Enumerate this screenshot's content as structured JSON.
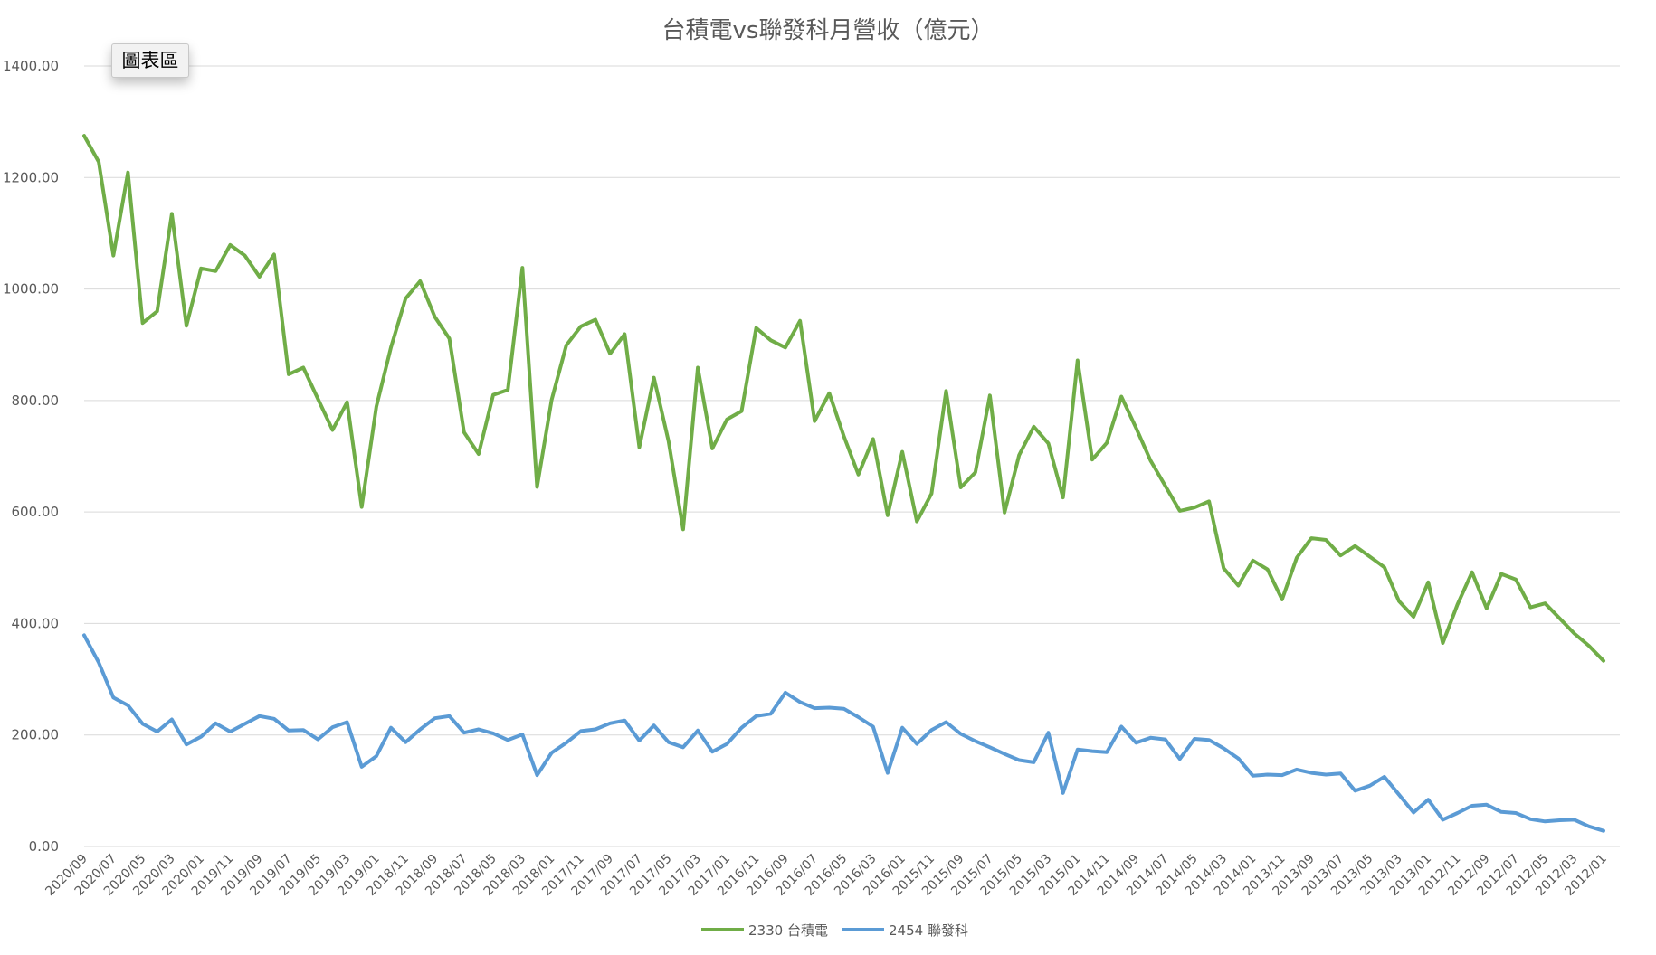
{
  "chart_data": {
    "type": "line",
    "title": "台積電vs聯發科月營收（億元）",
    "chart_area_label": "圖表區",
    "ylim": [
      0,
      1400
    ],
    "yticks": [
      "0.00",
      "200.00",
      "400.00",
      "600.00",
      "800.00",
      "1000.00",
      "1200.00",
      "1400.00"
    ],
    "grid": true,
    "legend_position": "bottom",
    "x": [
      "2020/09",
      "2020/08",
      "2020/07",
      "2020/06",
      "2020/05",
      "2020/04",
      "2020/03",
      "2020/02",
      "2020/01",
      "2019/12",
      "2019/11",
      "2019/10",
      "2019/09",
      "2019/08",
      "2019/07",
      "2019/06",
      "2019/05",
      "2019/04",
      "2019/03",
      "2019/02",
      "2019/01",
      "2018/12",
      "2018/11",
      "2018/10",
      "2018/09",
      "2018/08",
      "2018/07",
      "2018/06",
      "2018/05",
      "2018/04",
      "2018/03",
      "2018/02",
      "2018/01",
      "2017/12",
      "2017/11",
      "2017/10",
      "2017/09",
      "2017/08",
      "2017/07",
      "2017/06",
      "2017/05",
      "2017/04",
      "2017/03",
      "2017/02",
      "2017/01",
      "2016/12",
      "2016/11",
      "2016/10",
      "2016/09",
      "2016/08",
      "2016/07",
      "2016/06",
      "2016/05",
      "2016/04",
      "2016/03",
      "2016/02",
      "2016/01",
      "2015/12",
      "2015/11",
      "2015/10",
      "2015/09",
      "2015/08",
      "2015/07",
      "2015/06",
      "2015/05",
      "2015/04",
      "2015/03",
      "2015/02",
      "2015/01",
      "2014/12",
      "2014/11",
      "2014/10",
      "2014/09",
      "2014/08",
      "2014/07",
      "2014/06",
      "2014/05",
      "2014/04",
      "2014/03",
      "2014/02",
      "2014/01",
      "2013/12",
      "2013/11",
      "2013/10",
      "2013/09",
      "2013/08",
      "2013/07",
      "2013/06",
      "2013/05",
      "2013/04",
      "2013/03",
      "2013/02",
      "2013/01",
      "2012/12",
      "2012/11",
      "2012/10",
      "2012/09",
      "2012/08",
      "2012/07",
      "2012/06",
      "2012/05",
      "2012/04",
      "2012/03",
      "2012/02",
      "2012/01"
    ],
    "x_tick_labels": [
      "2020/09",
      "2020/07",
      "2020/05",
      "2020/03",
      "2020/01",
      "2019/11",
      "2019/09",
      "2019/07",
      "2019/05",
      "2019/03",
      "2019/01",
      "2018/11",
      "2018/09",
      "2018/07",
      "2018/05",
      "2018/03",
      "2018/01",
      "2017/11",
      "2017/09",
      "2017/07",
      "2017/05",
      "2017/03",
      "2017/01",
      "2016/11",
      "2016/09",
      "2016/07",
      "2016/05",
      "2016/03",
      "2016/01",
      "2015/11",
      "2015/09",
      "2015/07",
      "2015/05",
      "2015/03",
      "2015/01",
      "2014/11",
      "2014/09",
      "2014/07",
      "2014/05",
      "2014/03",
      "2014/01",
      "2013/11",
      "2013/09",
      "2013/07",
      "2013/05",
      "2013/03",
      "2013/01",
      "2012/11",
      "2012/09",
      "2012/07",
      "2012/05",
      "2012/03",
      "2012/01"
    ],
    "series": [
      {
        "name": "2330 台積電",
        "color": "#70ad47",
        "values": [
          1275,
          1228,
          1060,
          1209,
          939,
          960,
          1135,
          934,
          1037,
          1032,
          1079,
          1060,
          1022,
          1062,
          847,
          859,
          803,
          747,
          797,
          609,
          789,
          895,
          983,
          1014,
          950,
          911,
          743,
          704,
          810,
          819,
          1038,
          645,
          801,
          899,
          933,
          945,
          884,
          919,
          716,
          841,
          727,
          569,
          859,
          714,
          766,
          781,
          930,
          908,
          895,
          943,
          763,
          813,
          736,
          667,
          731,
          594,
          708,
          583,
          633,
          817,
          644,
          671,
          809,
          599,
          702,
          753,
          723,
          626,
          872,
          694,
          724,
          807,
          751,
          692,
          647,
          602,
          608,
          619,
          499,
          468,
          513,
          497,
          443,
          518,
          553,
          550,
          522,
          539,
          520,
          501,
          440,
          412,
          474,
          365,
          434,
          492,
          427,
          489,
          479,
          429,
          436,
          409,
          382,
          360,
          333
        ]
      },
      {
        "name": "2454 聯發科",
        "color": "#5b9bd5",
        "values": [
          379,
          330,
          267,
          253,
          220,
          206,
          228,
          183,
          197,
          221,
          206,
          220,
          234,
          229,
          208,
          209,
          192,
          214,
          223,
          143,
          162,
          213,
          187,
          210,
          230,
          234,
          204,
          210,
          203,
          191,
          201,
          128,
          168,
          186,
          207,
          210,
          221,
          226,
          190,
          217,
          187,
          178,
          208,
          170,
          184,
          213,
          234,
          238,
          276,
          259,
          248,
          249,
          247,
          232,
          215,
          132,
          213,
          184,
          209,
          223,
          202,
          189,
          178,
          166,
          155,
          151,
          204,
          96,
          174,
          171,
          169,
          215,
          186,
          195,
          192,
          157,
          193,
          191,
          176,
          158,
          127,
          129,
          128,
          138,
          132,
          129,
          131,
          100,
          109,
          125,
          93,
          61,
          84,
          48,
          60,
          73,
          75,
          62,
          60,
          49,
          45,
          47,
          48,
          36,
          28
        ]
      }
    ]
  }
}
